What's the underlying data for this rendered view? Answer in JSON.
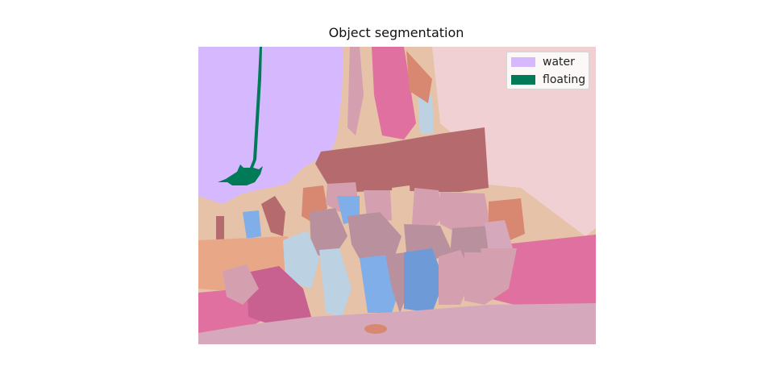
{
  "figure": {
    "title": "Object segmentation"
  },
  "legend": {
    "items": [
      {
        "label": "water",
        "color": "#d6b8ff"
      },
      {
        "label": "floating",
        "color": "#007b58"
      }
    ]
  },
  "palette": {
    "water": "#d6b8ff",
    "floating": "#007b58",
    "sky_right": "#f0d0d2",
    "tan": "#e5c2a8",
    "brick": "#b56a6e",
    "pink_bright": "#e070a0",
    "pink_floor": "#d6a8bc",
    "orange": "#e8a888",
    "light_blue": "#bcd2e2",
    "blue": "#80aee8",
    "blue_deep": "#6e9ad8",
    "mauve": "#b8909e",
    "magenta": "#c86090",
    "rose": "#d4a0b0",
    "salmon": "#d88870"
  }
}
